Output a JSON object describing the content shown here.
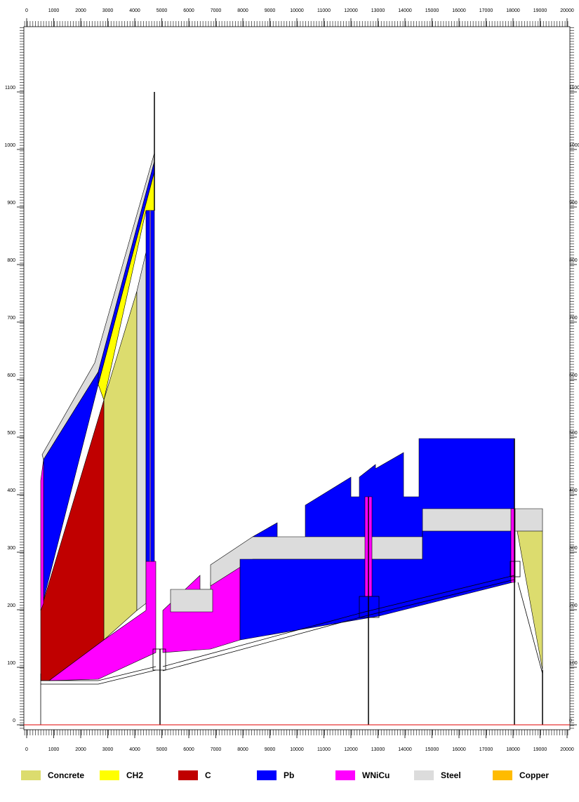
{
  "chart_data": {
    "type": "geometry",
    "xlim": [
      0,
      20000
    ],
    "ylim": [
      0,
      1100
    ],
    "xticks": [
      0,
      1000,
      2000,
      3000,
      4000,
      5000,
      6000,
      7000,
      8000,
      9000,
      10000,
      11000,
      12000,
      13000,
      14000,
      15000,
      16000,
      17000,
      18000,
      19000,
      20000
    ],
    "yticks": [
      0,
      100,
      200,
      300,
      400,
      500,
      600,
      700,
      800,
      900,
      1000,
      1100
    ],
    "legend": [
      {
        "name": "Concrete",
        "color": "#dcdc6e"
      },
      {
        "name": "CH2",
        "color": "#ffff00"
      },
      {
        "name": "C",
        "color": "#c00000"
      },
      {
        "name": "Pb",
        "color": "#0000ff"
      },
      {
        "name": "WNiCu",
        "color": "#ff00ff"
      },
      {
        "name": "Steel",
        "color": "#dcdcdc"
      },
      {
        "name": "Copper",
        "color": "#ffbb00"
      }
    ]
  }
}
